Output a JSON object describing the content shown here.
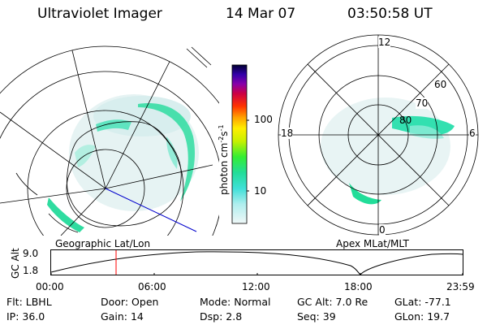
{
  "header": {
    "instrument": "Ultraviolet Imager",
    "date": "14 Mar 07",
    "time": "03:50:58 UT"
  },
  "left_panel": {
    "caption": "Geographic Lat/Lon"
  },
  "right_panel": {
    "caption": "Apex MLat/MLT",
    "mlt_labels": {
      "top": "12",
      "left": "18",
      "right": "6",
      "bottom": "0"
    },
    "lat_labels": [
      "60",
      "70",
      "80"
    ]
  },
  "colorbar": {
    "label": "photon cm",
    "label_exp1": "-2",
    "label_mid": "s",
    "label_exp2": "-1",
    "ticks": [
      "100",
      "10"
    ]
  },
  "orbit_plot": {
    "ylabel": "GC Alt",
    "y_ticks": [
      "9.0",
      "1.8"
    ],
    "x_ticks": [
      "00:00",
      "06:00",
      "12:00",
      "18:00",
      "23:59"
    ],
    "marker_time": "03:50:58"
  },
  "footer": {
    "row1": [
      {
        "k": "Flt:",
        "v": "LBHL"
      },
      {
        "k": "Door:",
        "v": "Open"
      },
      {
        "k": "Mode:",
        "v": "Normal"
      },
      {
        "k": "GC Alt:",
        "v": "7.0 Re"
      },
      {
        "k": "GLat:",
        "v": "-77.1"
      }
    ],
    "row2": [
      {
        "k": "IP:",
        "v": "36.0"
      },
      {
        "k": "Gain:",
        "v": "14"
      },
      {
        "k": "Dsp:",
        "v": "2.8"
      },
      {
        "k": "Seq:",
        "v": "39"
      },
      {
        "k": "GLon:",
        "v": "19.7"
      }
    ]
  },
  "colors": {
    "aurora_high": "#22dd99",
    "aurora_low": "#cfeee8",
    "marker": "#ff0000",
    "orbit_line": "#0000cc"
  }
}
